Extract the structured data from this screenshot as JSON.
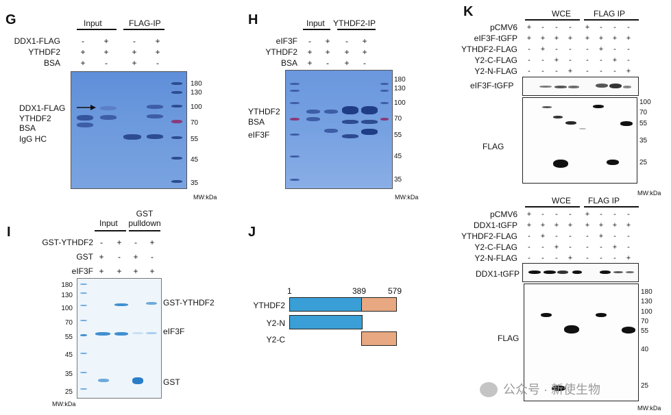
{
  "panels": {
    "G": {
      "label": "G",
      "group_input": "Input",
      "group_ip": "FLAG-IP",
      "rows": [
        {
          "name": "DDX1-FLAG",
          "vals": [
            "-",
            "+",
            "-",
            "+"
          ]
        },
        {
          "name": "YTHDF2",
          "vals": [
            "+",
            "+",
            "+",
            "+"
          ]
        },
        {
          "name": "BSA",
          "vals": [
            "+",
            "-",
            "+",
            "-"
          ]
        }
      ],
      "band_labels": [
        "DDX1-FLAG",
        "YTHDF2",
        "BSA",
        "IgG HC"
      ],
      "mw": [
        "180",
        "130",
        "100",
        "70",
        "55",
        "45",
        "35"
      ],
      "mw_unit": "MW:kDa"
    },
    "H": {
      "label": "H",
      "group_input": "Input",
      "group_ip": "YTHDF2-IP",
      "rows": [
        {
          "name": "eIF3F",
          "vals": [
            "-",
            "+",
            "-",
            "+"
          ]
        },
        {
          "name": "YTHDF2",
          "vals": [
            "+",
            "+",
            "+",
            "+"
          ]
        },
        {
          "name": "BSA",
          "vals": [
            "+",
            "-",
            "+",
            "-"
          ]
        }
      ],
      "band_labels": [
        "YTHDF2",
        "BSA",
        "eIF3F"
      ],
      "mw": [
        "180",
        "130",
        "100",
        "70",
        "55",
        "45",
        "35"
      ],
      "mw_unit": "MW:kDa"
    },
    "I": {
      "label": "I",
      "group_input": "Input",
      "group_pulldown_1": "GST",
      "group_pulldown_2": "pulldown",
      "rows": [
        {
          "name": "GST-YTHDF2",
          "vals": [
            "-",
            "+",
            "-",
            "+"
          ]
        },
        {
          "name": "GST",
          "vals": [
            "+",
            "-",
            "+",
            "-"
          ]
        },
        {
          "name": "eIF3F",
          "vals": [
            "+",
            "+",
            "+",
            "+"
          ]
        }
      ],
      "band_labels": [
        "GST-YTHDF2",
        "eIF3F",
        "GST"
      ],
      "mw": [
        "180",
        "130",
        "100",
        "70",
        "55",
        "45",
        "35",
        "25"
      ],
      "mw_unit": "MW:kDa"
    },
    "J": {
      "label": "J",
      "positions": [
        "1",
        "389",
        "579"
      ],
      "constructs": [
        "YTHDF2",
        "Y2-N",
        "Y2-C"
      ],
      "colors": {
        "n_domain": "#3a9fd6",
        "c_domain": "#e8a882"
      }
    },
    "K": {
      "label": "K",
      "top": {
        "group_wce": "WCE",
        "group_ip": "FLAG IP",
        "rows": [
          {
            "name": "pCMV6",
            "vals": [
              "+",
              "-",
              "-",
              "-",
              "+",
              "-",
              "-",
              "-"
            ]
          },
          {
            "name": "eIF3F-tGFP",
            "vals": [
              "+",
              "+",
              "+",
              "+",
              "+",
              "+",
              "+",
              "+"
            ]
          },
          {
            "name": "YTHDF2-FLAG",
            "vals": [
              "-",
              "+",
              "-",
              "-",
              "-",
              "+",
              "-",
              "-"
            ]
          },
          {
            "name": "Y2-C-FLAG",
            "vals": [
              "-",
              "-",
              "+",
              "-",
              "-",
              "-",
              "+",
              "-"
            ]
          },
          {
            "name": "Y2-N-FLAG",
            "vals": [
              "-",
              "-",
              "-",
              "+",
              "-",
              "-",
              "-",
              "+"
            ]
          }
        ],
        "blot_labels": [
          "eIF3F-tGFP",
          "FLAG"
        ],
        "mw": [
          "100",
          "70",
          "55",
          "35",
          "25"
        ],
        "mw_unit": "MW:kDa"
      },
      "bottom": {
        "group_wce": "WCE",
        "group_ip": "FLAG IP",
        "rows": [
          {
            "name": "pCMV6",
            "vals": [
              "+",
              "-",
              "-",
              "-",
              "+",
              "-",
              "-",
              "-"
            ]
          },
          {
            "name": "DDX1-tGFP",
            "vals": [
              "+",
              "+",
              "+",
              "+",
              "+",
              "+",
              "+",
              "+"
            ]
          },
          {
            "name": "YTHDF2-FLAG",
            "vals": [
              "-",
              "+",
              "-",
              "-",
              "-",
              "+",
              "-",
              "-"
            ]
          },
          {
            "name": "Y2-C-FLAG",
            "vals": [
              "-",
              "-",
              "+",
              "-",
              "-",
              "-",
              "+",
              "-"
            ]
          },
          {
            "name": "Y2-N-FLAG",
            "vals": [
              "-",
              "-",
              "-",
              "+",
              "-",
              "-",
              "-",
              "+"
            ]
          }
        ],
        "blot_labels": [
          "DDX1-tGFP",
          "FLAG"
        ],
        "mw": [
          "180",
          "130",
          "100",
          "70",
          "55",
          "40",
          "25"
        ],
        "mw_unit": "MW:kDa"
      }
    }
  },
  "watermark": "公众号 · 新使生物"
}
